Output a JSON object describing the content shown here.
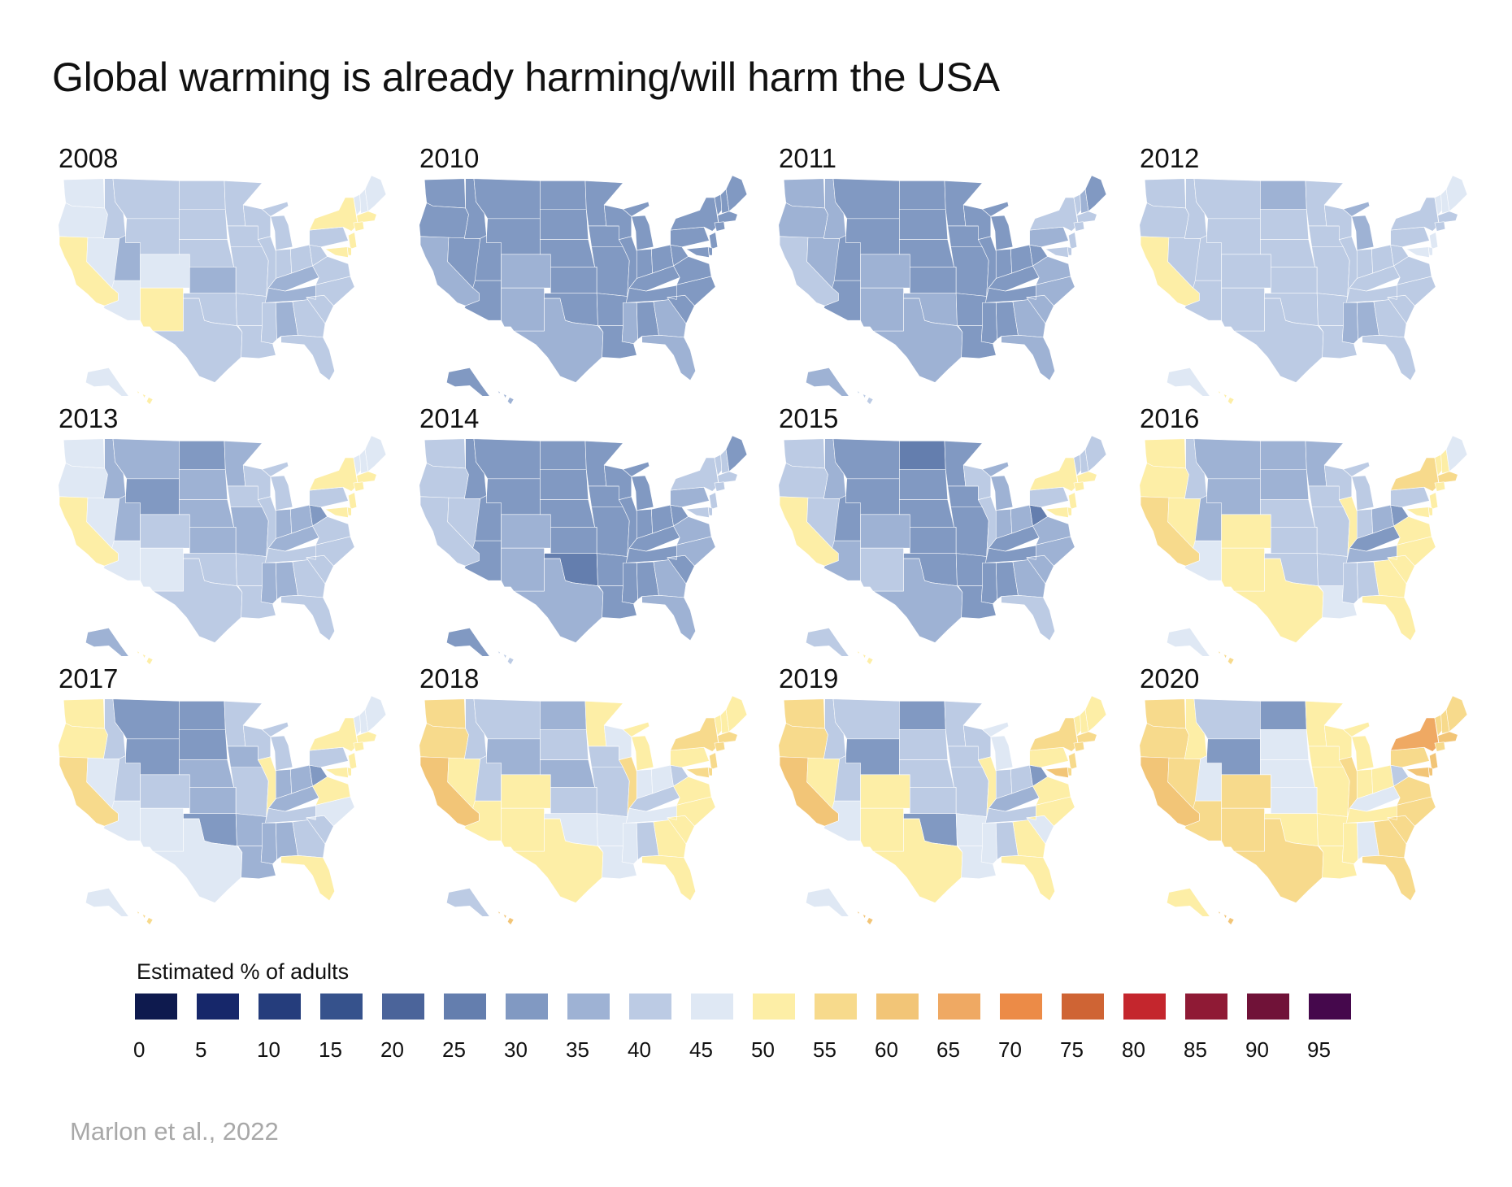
{
  "title": "Global warming is already harming/will harm the USA",
  "source": "Marlon et al., 2022",
  "legend": {
    "title": "Estimated % of adults",
    "bins": [
      {
        "label": "0",
        "color": "#0e1a4e"
      },
      {
        "label": "5",
        "color": "#16276a"
      },
      {
        "label": "10",
        "color": "#253d7c"
      },
      {
        "label": "15",
        "color": "#36528c"
      },
      {
        "label": "20",
        "color": "#4b649a"
      },
      {
        "label": "25",
        "color": "#647eae"
      },
      {
        "label": "30",
        "color": "#8199c2"
      },
      {
        "label": "35",
        "color": "#9eb2d4"
      },
      {
        "label": "40",
        "color": "#bccbe4"
      },
      {
        "label": "45",
        "color": "#dfe8f4"
      },
      {
        "label": "50",
        "color": "#fdeea6"
      },
      {
        "label": "55",
        "color": "#f7da8c"
      },
      {
        "label": "60",
        "color": "#f2c577"
      },
      {
        "label": "65",
        "color": "#efa963"
      },
      {
        "label": "70",
        "color": "#ec8b47"
      },
      {
        "label": "75",
        "color": "#cf6434"
      },
      {
        "label": "80",
        "color": "#c4262d"
      },
      {
        "label": "85",
        "color": "#8f1a35"
      },
      {
        "label": "90",
        "color": "#701238"
      },
      {
        "label": "95",
        "color": "#45084c"
      }
    ]
  },
  "states": [
    "WA",
    "OR",
    "CA",
    "NV",
    "ID",
    "MT",
    "WY",
    "UT",
    "AZ",
    "CO",
    "NM",
    "ND",
    "SD",
    "NE",
    "KS",
    "OK",
    "TX",
    "MN",
    "IA",
    "MO",
    "AR",
    "LA",
    "WI",
    "IL",
    "MI",
    "IN",
    "OH",
    "KY",
    "TN",
    "MS",
    "AL",
    "GA",
    "FL",
    "SC",
    "NC",
    "VA",
    "WV",
    "PA",
    "NY",
    "VT",
    "NH",
    "ME",
    "MA",
    "CT",
    "NJ",
    "DE",
    "MD",
    "AK",
    "HI"
  ],
  "maps": [
    {
      "year": "2008",
      "values": [
        46,
        48,
        53,
        46,
        40,
        41,
        40,
        37,
        46,
        46,
        52,
        40,
        40,
        40,
        38,
        42,
        44,
        40,
        40,
        40,
        43,
        42,
        44,
        42,
        40,
        43,
        41,
        38,
        39,
        40,
        36,
        42,
        44,
        41,
        41,
        42,
        41,
        44,
        52,
        46,
        47,
        47,
        51,
        51,
        52,
        52,
        50,
        46,
        51
      ]
    },
    {
      "year": "2010",
      "values": [
        34,
        34,
        36,
        34,
        34,
        34,
        34,
        34,
        34,
        37,
        37,
        34,
        34,
        34,
        34,
        34,
        38,
        34,
        34,
        34,
        34,
        34,
        33,
        34,
        32,
        34,
        34,
        34,
        34,
        37,
        34,
        36,
        38,
        34,
        32,
        34,
        33,
        34,
        33,
        34,
        32,
        31,
        34,
        34,
        34,
        34,
        34,
        33,
        38
      ]
    },
    {
      "year": "2011",
      "values": [
        38,
        38,
        41,
        39,
        35,
        34,
        34,
        34,
        34,
        39,
        39,
        30,
        34,
        33,
        34,
        36,
        39,
        34,
        34,
        34,
        34,
        34,
        34,
        34,
        34,
        34,
        34,
        34,
        34,
        34,
        34,
        36,
        39,
        37,
        35,
        37,
        34,
        37,
        40,
        44,
        38,
        33,
        40,
        41,
        41,
        41,
        41,
        38,
        42
      ]
    },
    {
      "year": "2012",
      "values": [
        44,
        44,
        53,
        44,
        40,
        40,
        40,
        40,
        44,
        44,
        44,
        36,
        40,
        40,
        40,
        42,
        44,
        40,
        40,
        40,
        41,
        42,
        42,
        42,
        38,
        41,
        41,
        40,
        40,
        39,
        36,
        42,
        44,
        42,
        42,
        42,
        40,
        42,
        44,
        46,
        46,
        46,
        44,
        44,
        45,
        45,
        45,
        46,
        51
      ]
    },
    {
      "year": "2013",
      "values": [
        46,
        46,
        52,
        46,
        39,
        38,
        33,
        39,
        46,
        43,
        45,
        34,
        38,
        39,
        39,
        41,
        44,
        39,
        40,
        39,
        42,
        42,
        43,
        42,
        40,
        39,
        38,
        38,
        40,
        39,
        38,
        43,
        44,
        42,
        42,
        40,
        33,
        44,
        52,
        48,
        47,
        46,
        51,
        50,
        52,
        52,
        51,
        38,
        52
      ]
    },
    {
      "year": "2014",
      "values": [
        40,
        40,
        42,
        40,
        30,
        34,
        30,
        30,
        34,
        39,
        39,
        30,
        34,
        30,
        34,
        28,
        39,
        34,
        34,
        34,
        34,
        34,
        34,
        34,
        34,
        34,
        34,
        30,
        34,
        34,
        34,
        36,
        39,
        34,
        38,
        38,
        30,
        38,
        40,
        42,
        40,
        34,
        40,
        41,
        42,
        42,
        42,
        34,
        40
      ]
    },
    {
      "year": "2015",
      "values": [
        42,
        42,
        51,
        42,
        38,
        34,
        30,
        34,
        38,
        38,
        44,
        29,
        34,
        34,
        34,
        34,
        38,
        34,
        34,
        34,
        34,
        34,
        40,
        40,
        38,
        38,
        38,
        34,
        34,
        34,
        34,
        38,
        40,
        38,
        38,
        38,
        28,
        40,
        51,
        44,
        42,
        40,
        51,
        50,
        51,
        51,
        52,
        40,
        52
      ]
    },
    {
      "year": "2016",
      "values": [
        51,
        52,
        55,
        51,
        41,
        38,
        35,
        38,
        46,
        52,
        52,
        35,
        38,
        40,
        43,
        41,
        51,
        38,
        40,
        40,
        43,
        46,
        43,
        51,
        40,
        40,
        38,
        34,
        38,
        40,
        40,
        51,
        52,
        51,
        51,
        51,
        34,
        42,
        55,
        50,
        50,
        46,
        55,
        52,
        53,
        51,
        52,
        45,
        57
      ]
    },
    {
      "year": "2017",
      "values": [
        51,
        51,
        56,
        46,
        40,
        34,
        30,
        40,
        46,
        42,
        46,
        30,
        34,
        36,
        38,
        30,
        46,
        40,
        38,
        40,
        38,
        38,
        40,
        53,
        42,
        38,
        38,
        35,
        40,
        38,
        35,
        44,
        51,
        44,
        46,
        50,
        34,
        44,
        52,
        46,
        46,
        45,
        52,
        52,
        54,
        54,
        54,
        46,
        57
      ]
    },
    {
      "year": "2018",
      "values": [
        56,
        57,
        62,
        52,
        44,
        44,
        36,
        44,
        52,
        51,
        52,
        36,
        43,
        38,
        44,
        46,
        51,
        50,
        44,
        42,
        46,
        46,
        45,
        55,
        51,
        45,
        45,
        42,
        46,
        46,
        44,
        50,
        52,
        50,
        51,
        54,
        44,
        51,
        56,
        53,
        52,
        52,
        55,
        55,
        57,
        57,
        58,
        44,
        60
      ]
    },
    {
      "year": "2019",
      "values": [
        57,
        57,
        60,
        52,
        40,
        40,
        30,
        40,
        46,
        52,
        52,
        30,
        42,
        40,
        42,
        30,
        52,
        44,
        42,
        44,
        46,
        46,
        44,
        52,
        46,
        42,
        42,
        36,
        44,
        46,
        42,
        52,
        52,
        46,
        51,
        51,
        32,
        52,
        57,
        52,
        52,
        52,
        56,
        56,
        59,
        58,
        60,
        46,
        62
      ]
    },
    {
      "year": "2020",
      "values": [
        58,
        58,
        62,
        57,
        52,
        44,
        34,
        45,
        57,
        56,
        57,
        34,
        45,
        45,
        47,
        50,
        57,
        52,
        51,
        50,
        53,
        53,
        51,
        58,
        52,
        51,
        51,
        46,
        51,
        51,
        45,
        57,
        57,
        57,
        55,
        57,
        40,
        57,
        67,
        55,
        55,
        55,
        60,
        59,
        61,
        60,
        61,
        52,
        64
      ]
    }
  ]
}
